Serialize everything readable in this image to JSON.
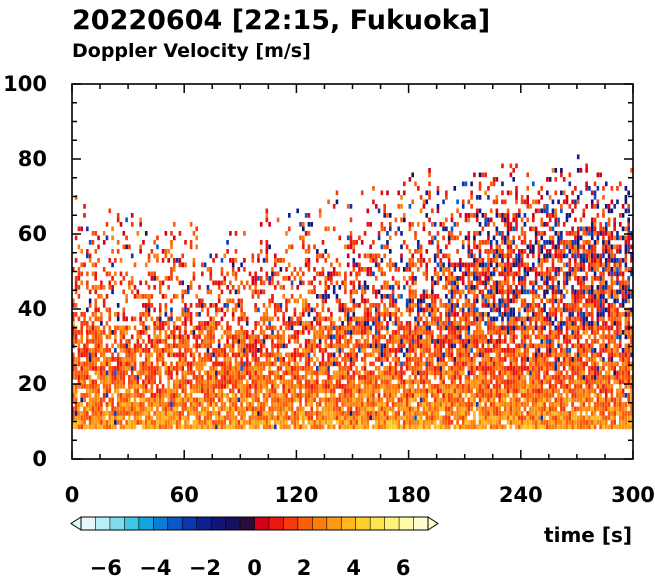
{
  "chart_data": {
    "type": "heatmap",
    "title": "20220604 [22:15, Fukuoka]",
    "subtitle": "Doppler Velocity [m/s]",
    "xlabel": "time [s]",
    "ylabel": "",
    "xlim": [
      0,
      300
    ],
    "ylim": [
      0,
      100
    ],
    "x_ticks": [
      "0",
      "60",
      "120",
      "180",
      "240",
      "300"
    ],
    "y_ticks": [
      "0",
      "20",
      "40",
      "60",
      "80",
      "100"
    ],
    "echo_bottom": 8,
    "echo_top": [
      {
        "x": 0,
        "y": 70
      },
      {
        "x": 30,
        "y": 66
      },
      {
        "x": 60,
        "y": 63
      },
      {
        "x": 90,
        "y": 62
      },
      {
        "x": 120,
        "y": 66
      },
      {
        "x": 150,
        "y": 70
      },
      {
        "x": 180,
        "y": 74
      },
      {
        "x": 210,
        "y": 76
      },
      {
        "x": 240,
        "y": 77
      },
      {
        "x": 270,
        "y": 78
      },
      {
        "x": 300,
        "y": 76
      }
    ],
    "dense_top": [
      {
        "x": 0,
        "y": 36
      },
      {
        "x": 60,
        "y": 34
      },
      {
        "x": 120,
        "y": 36
      },
      {
        "x": 180,
        "y": 42
      },
      {
        "x": 240,
        "y": 60
      },
      {
        "x": 300,
        "y": 62
      }
    ],
    "colorbar": {
      "min": -7,
      "max": 7,
      "tick_labels": [
        "−6",
        "−4",
        "−2",
        "0",
        "2",
        "4",
        "6"
      ],
      "tick_values": [
        -6,
        -4,
        -2,
        0,
        2,
        4,
        6
      ],
      "colors": [
        "#e6f8fb",
        "#b8eff5",
        "#7fdcec",
        "#3fc6e6",
        "#15a4de",
        "#0d7cd4",
        "#0b57c6",
        "#0b36b0",
        "#0e1f96",
        "#121478",
        "#15115a",
        "#2a0c3a",
        "#d4001a",
        "#e8180f",
        "#f63a0c",
        "#fb5e0a",
        "#fd7e0c",
        "#fd9a14",
        "#feb71e",
        "#fed02e",
        "#fee54f",
        "#fef27a",
        "#fffaa6",
        "#fffdd0"
      ],
      "extend": "both"
    }
  }
}
